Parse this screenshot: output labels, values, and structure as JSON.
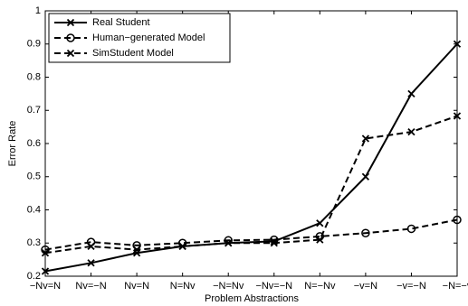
{
  "chart_data": {
    "type": "line",
    "xlabel": "Problem Abstractions",
    "ylabel": "Error Rate",
    "categories": [
      "−Nv=N",
      "Nv=−N",
      "Nv=N",
      "N=Nv",
      "−N=Nv",
      "−Nv=−N",
      "N=−Nv",
      "−v=N",
      "−v=−N",
      "−N=−v"
    ],
    "series": [
      {
        "name": "Real Student",
        "color": "#000000",
        "style": "solid",
        "marker": "x",
        "values": [
          0.215,
          0.24,
          0.27,
          0.29,
          0.3,
          0.305,
          0.36,
          0.5,
          0.75,
          0.9
        ]
      },
      {
        "name": "Human−generated Model",
        "color": "#000000",
        "style": "dashed",
        "marker": "o",
        "values": [
          0.28,
          0.303,
          0.293,
          0.3,
          0.308,
          0.31,
          0.32,
          0.33,
          0.343,
          0.37
        ]
      },
      {
        "name": "SimStudent Model",
        "color": "#000000",
        "style": "dashed",
        "marker": "x",
        "values": [
          0.27,
          0.29,
          0.28,
          0.29,
          0.3,
          0.3,
          0.31,
          0.615,
          0.635,
          0.683
        ]
      }
    ],
    "ylim": [
      0.2,
      1
    ],
    "yticks": [
      0.2,
      0.3,
      0.4,
      0.5,
      0.6,
      0.7,
      0.8,
      0.9,
      1
    ],
    "grid": false,
    "legend": "upper left"
  }
}
